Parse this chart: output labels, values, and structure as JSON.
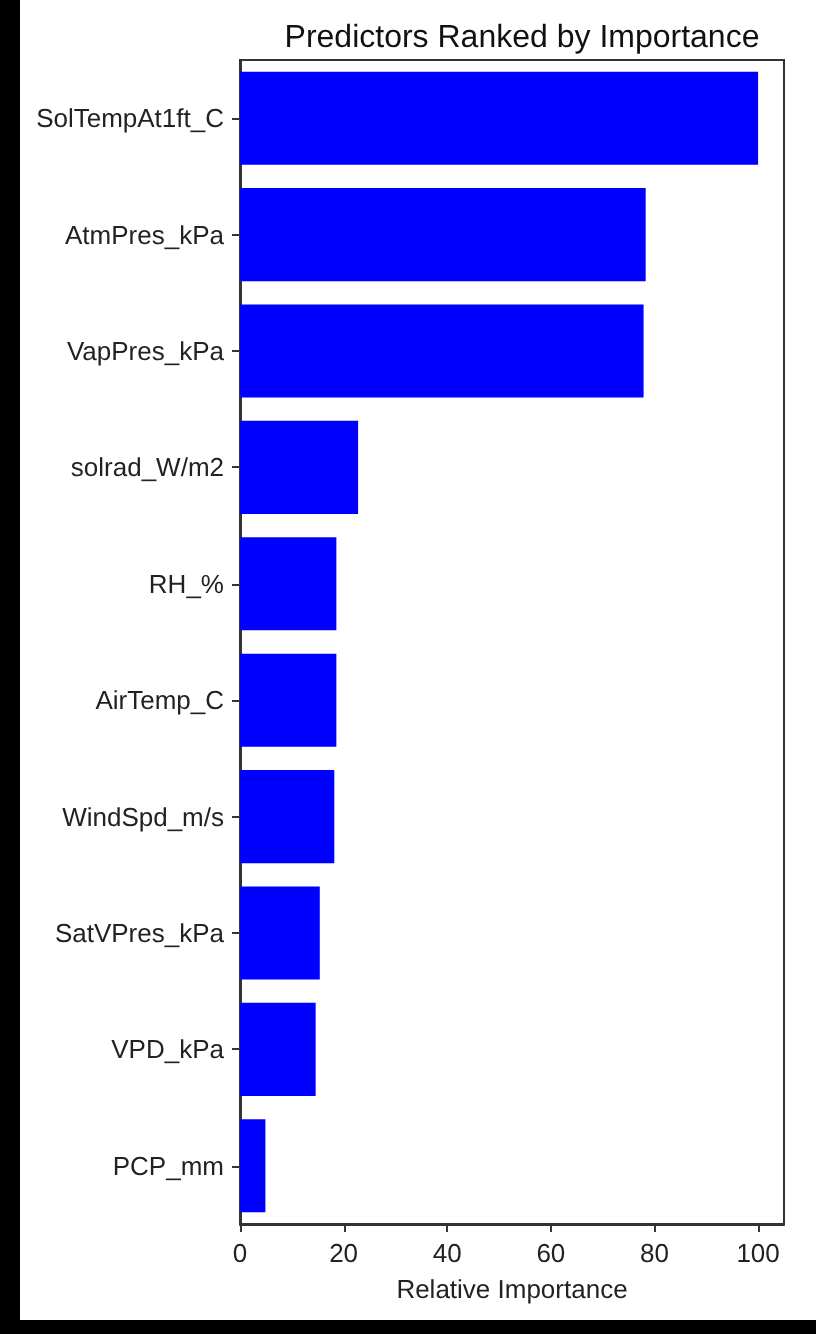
{
  "chart_data": {
    "type": "bar",
    "orientation": "horizontal",
    "title": "Predictors Ranked by Importance",
    "xlabel": "Relative Importance",
    "categories": [
      "SolTempAt1ft_C",
      "AtmPres_kPa",
      "VapPres_kPa",
      "solrad_W/m2",
      "RH_%",
      "AirTemp_C",
      "WindSpd_m/s",
      "SatVPres_kPa",
      "VPD_kPa",
      "PCP_mm"
    ],
    "values": [
      100,
      78.3,
      77.9,
      22.8,
      18.6,
      18.6,
      18.2,
      15.4,
      14.6,
      4.9
    ],
    "color": "#0000ff",
    "xlim": [
      0,
      105
    ],
    "xticks": [
      0,
      20,
      40,
      60,
      80,
      100
    ]
  }
}
